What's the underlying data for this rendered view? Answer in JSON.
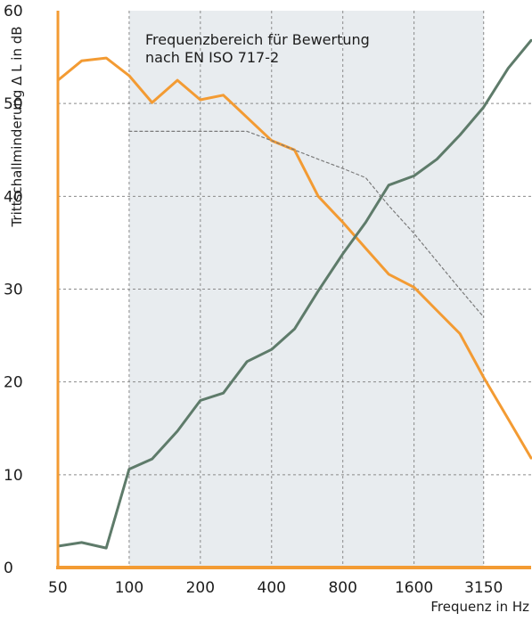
{
  "colors": {
    "orange_series": "#f39b33",
    "green_series": "#5e7b6a",
    "reference_line": "#7a7a7a",
    "band_fill": "#e8ecef",
    "grid": "#8a8a8a",
    "axis_orange": "#f39b33"
  },
  "chart_data": {
    "type": "line",
    "title": "",
    "ylabel": "Trittschallminderung  Δ L in dB",
    "xlabel": "Frequenz in Hz",
    "ylim": [
      0,
      60
    ],
    "y_ticks": [
      "0",
      "10",
      "20",
      "30",
      "40",
      "50",
      "60"
    ],
    "x_scale": "log2",
    "x_ticks": [
      "50",
      "100",
      "200",
      "400",
      "800",
      "1600",
      "3150"
    ],
    "grid": true,
    "annotation": {
      "line1": "Frequenzbereich für Bewertung",
      "line2": "nach EN ISO 717-2",
      "x_range": [
        100,
        3150
      ]
    },
    "x": [
      50,
      63,
      80,
      100,
      125,
      160,
      200,
      250,
      315,
      400,
      500,
      630,
      800,
      1000,
      1250,
      1600,
      2000,
      2500,
      3150,
      4000,
      5000
    ],
    "series": [
      {
        "values": [
          52.5,
          54.6,
          54.9,
          53.0,
          50.1,
          52.5,
          50.4,
          50.9,
          48.5,
          46.0,
          45.0,
          40.0,
          37.2,
          34.4,
          31.6,
          30.2,
          27.7,
          25.2,
          20.5,
          16.0,
          11.8
        ]
      },
      {
        "values": [
          2.3,
          2.7,
          2.1,
          10.6,
          11.7,
          14.7,
          18.0,
          18.8,
          22.2,
          23.5,
          25.7,
          29.8,
          33.8,
          37.2,
          41.2,
          42.2,
          44.0,
          46.6,
          49.6,
          53.8,
          56.8
        ]
      },
      {
        "values": [
          null,
          null,
          null,
          47.0,
          47.0,
          47.0,
          47.0,
          47.0,
          47.0,
          46.0,
          45.0,
          44.0,
          43.0,
          42.0,
          39.0,
          36.0,
          33.0,
          30.0,
          27.0,
          null,
          null
        ]
      }
    ]
  }
}
